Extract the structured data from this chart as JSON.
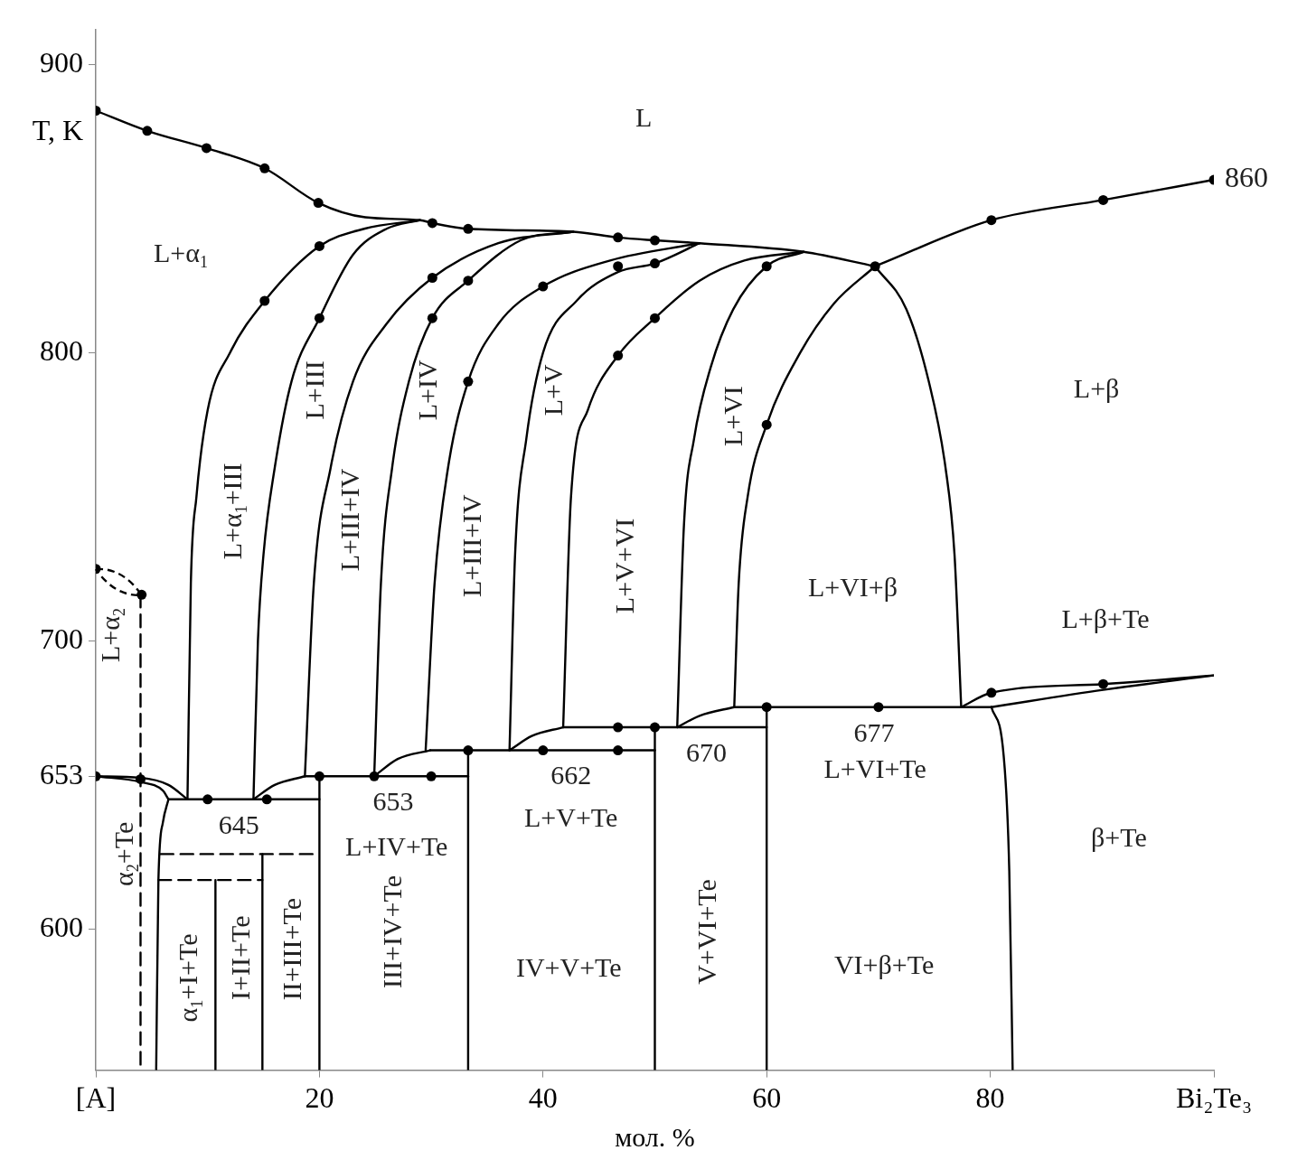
{
  "chart_data": {
    "type": "line",
    "xlabel": "мол. %",
    "ylabel": "T, K",
    "xlim": [
      0,
      100
    ],
    "ylim": [
      551,
      912
    ],
    "xticks": [
      {
        "value": 0,
        "label": "[A]"
      },
      20,
      40,
      60,
      80,
      {
        "value": 100,
        "label": "Bi₂Te₃"
      }
    ],
    "yticks": [
      600,
      653,
      700,
      800,
      900
    ],
    "series": [
      {
        "type": "line",
        "color": "#000000",
        "x": [
          0,
          4.6,
          9.9,
          15.1,
          19.9,
          24.1,
          29,
          30.1,
          33.3,
          42.7,
          46.7,
          50,
          54,
          63.3,
          69.7
        ],
        "values": [
          884,
          877,
          871,
          864,
          852,
          847,
          846,
          845,
          843,
          842,
          840,
          839,
          838,
          835,
          830
        ]
      },
      {
        "type": "line",
        "color": "#000000",
        "x": [
          69.7,
          80.1,
          90.1,
          100
        ],
        "values": [
          830,
          846,
          853,
          860
        ]
      },
      {
        "type": "line",
        "color": "#000000",
        "x": [
          29,
          24,
          20,
          15.1,
          12,
          10,
          9,
          8.5,
          8.2
        ],
        "values": [
          846,
          843,
          837,
          818,
          800,
          780,
          750,
          720,
          645
        ]
      },
      {
        "type": "line",
        "color": "#000000",
        "x": [
          29,
          26,
          23,
          20,
          17.5,
          16,
          15,
          14.5,
          14.1
        ],
        "values": [
          846,
          843,
          834,
          812,
          790,
          760,
          730,
          700,
          645
        ]
      },
      {
        "type": "line",
        "color": "#000000",
        "x": [
          42.7,
          36,
          30.1,
          26,
          23,
          21,
          19.5,
          18.7
        ],
        "values": [
          842,
          838,
          826,
          810,
          790,
          760,
          720,
          653
        ]
      },
      {
        "type": "line",
        "color": "#000000",
        "x": [
          42.7,
          38,
          33.3,
          30.1,
          28,
          26.5,
          25.5,
          24.9
        ],
        "values": [
          842,
          839,
          825,
          812,
          790,
          760,
          720,
          653
        ]
      },
      {
        "type": "line",
        "color": "#000000",
        "x": [
          54,
          46,
          40,
          36,
          33.3,
          31.5,
          30.3,
          29.5
        ],
        "values": [
          838,
          832,
          823,
          810,
          790,
          760,
          720,
          662
        ]
      },
      {
        "type": "line",
        "color": "#000000",
        "x": [
          54,
          50,
          46.7,
          43,
          40,
          38.5,
          37.5,
          37
        ],
        "values": [
          838,
          831,
          828,
          818,
          800,
          770,
          730,
          662
        ]
      },
      {
        "type": "line",
        "color": "#000000",
        "x": [
          63.3,
          58,
          54,
          50,
          46.7,
          44,
          42.5,
          41.8
        ],
        "values": [
          835,
          832,
          825,
          812,
          799,
          780,
          750,
          670
        ]
      },
      {
        "type": "line",
        "color": "#000000",
        "x": [
          63.3,
          60,
          57,
          55,
          53.5,
          52.6,
          52
        ],
        "values": [
          835,
          830,
          815,
          795,
          770,
          740,
          670
        ]
      },
      {
        "type": "line",
        "color": "#000000",
        "x": [
          69.7,
          66,
          63,
          60,
          58.3,
          57.5,
          57.1
        ],
        "values": [
          830,
          817,
          800,
          775,
          750,
          720,
          677
        ]
      },
      {
        "type": "line",
        "color": "#000000",
        "x": [
          69.7,
          72.5,
          74.5,
          76,
          76.8,
          77.4
        ],
        "values": [
          830,
          815,
          790,
          760,
          730,
          677
        ]
      },
      {
        "type": "line",
        "color": "#000000",
        "x": [
          0,
          4,
          6.5,
          8.2
        ],
        "values": [
          653,
          652.5,
          650,
          645
        ]
      },
      {
        "type": "line",
        "color": "#000000",
        "x": [
          0,
          4,
          6,
          6.5
        ],
        "values": [
          653,
          651,
          648,
          645
        ]
      },
      {
        "type": "line",
        "color": "#000000",
        "x": [
          6.5,
          6,
          5.6,
          5.4
        ],
        "values": [
          645,
          637,
          617,
          551
        ]
      },
      {
        "type": "line",
        "color": "#000000",
        "x": [
          6.5,
          20
        ],
        "values": [
          645,
          645
        ]
      },
      {
        "type": "line",
        "color": "#000000",
        "x": [
          14.1,
          16,
          18.7
        ],
        "values": [
          645,
          650,
          653
        ]
      },
      {
        "type": "line",
        "color": "#000000",
        "x": [
          18.7,
          33.3
        ],
        "values": [
          653,
          653
        ]
      },
      {
        "type": "line",
        "color": "#000000",
        "x": [
          20,
          20
        ],
        "values": [
          653,
          551
        ]
      },
      {
        "type": "line",
        "color": "#000000",
        "x": [
          24.9,
          27,
          29.9
        ],
        "values": [
          653,
          659,
          662
        ]
      },
      {
        "type": "line",
        "color": "#000000",
        "x": [
          29.9,
          50
        ],
        "values": [
          662,
          662
        ]
      },
      {
        "type": "line",
        "color": "#000000",
        "x": [
          33.3,
          33.3
        ],
        "values": [
          662,
          551
        ]
      },
      {
        "type": "line",
        "color": "#000000",
        "x": [
          37,
          39,
          41.8
        ],
        "values": [
          662,
          667,
          670
        ]
      },
      {
        "type": "line",
        "color": "#000000",
        "x": [
          41.8,
          60
        ],
        "values": [
          670,
          670
        ]
      },
      {
        "type": "line",
        "color": "#000000",
        "x": [
          50,
          50
        ],
        "values": [
          670,
          551
        ]
      },
      {
        "type": "line",
        "color": "#000000",
        "x": [
          52,
          54,
          57.1
        ],
        "values": [
          670,
          674,
          677
        ]
      },
      {
        "type": "line",
        "color": "#000000",
        "x": [
          57.1,
          80.1
        ],
        "values": [
          677,
          677
        ]
      },
      {
        "type": "line",
        "color": "#000000",
        "x": [
          60,
          60
        ],
        "values": [
          677,
          551
        ]
      },
      {
        "type": "line",
        "color": "#000000",
        "x": [
          77.4,
          80.1,
          90.1,
          100
        ],
        "values": [
          677,
          682,
          685,
          688
        ]
      },
      {
        "type": "line",
        "color": "#000000",
        "x": [
          80.1,
          90.1,
          100
        ],
        "values": [
          677,
          683,
          688
        ]
      },
      {
        "type": "line",
        "color": "#000000",
        "x": [
          80.1,
          81.2,
          81.7,
          82
        ],
        "values": [
          677,
          660,
          620,
          551
        ]
      },
      {
        "type": "line",
        "color": "#000000",
        "x": [
          10.7,
          10.7
        ],
        "values": [
          617,
          551
        ]
      },
      {
        "type": "line",
        "color": "#000000",
        "x": [
          14.9,
          14.9
        ],
        "values": [
          626,
          551
        ]
      },
      {
        "type": "line",
        "color": "#000000",
        "line_style": "dashed",
        "x": [
          5.8,
          20
        ],
        "values": [
          626,
          626
        ]
      },
      {
        "type": "line",
        "color": "#000000",
        "line_style": "dashed",
        "x": [
          5.6,
          14.9
        ],
        "values": [
          617,
          617
        ]
      },
      {
        "type": "line",
        "color": "#000000",
        "line_style": "dashed",
        "x": [
          4,
          4
        ],
        "values": [
          716,
          551
        ]
      },
      {
        "type": "scatter",
        "color": "#000000",
        "marker": "circle",
        "x": [
          0,
          4.6,
          9.9,
          15.1,
          19.9,
          30.1,
          33.3,
          46.7,
          50,
          60,
          69.7,
          80.1,
          90.1,
          100,
          20,
          15.1,
          20,
          30.1,
          33.3,
          30.1,
          33.3,
          40,
          46.7,
          50,
          46.7,
          50,
          60,
          0,
          4,
          10,
          15.3,
          20,
          24.9,
          30,
          33.3,
          40,
          46.7,
          46.7,
          50,
          60,
          70,
          80.1,
          90.1,
          0,
          4.1
        ],
        "values": [
          884,
          877,
          871,
          864,
          852,
          845,
          843,
          840,
          839,
          830,
          830,
          846,
          853,
          860,
          837,
          818,
          812,
          826,
          825,
          812,
          790,
          823,
          830,
          831,
          799,
          812,
          775,
          653,
          652,
          645,
          645,
          653,
          653,
          653,
          662,
          662,
          662,
          670,
          670,
          677,
          677,
          682,
          685,
          725,
          716
        ]
      }
    ],
    "annotations": [
      "L+α$_{2}$",
      "α$_{2}$+Te",
      "L+α$_{1}$+III",
      "L+III",
      "L+III+IV",
      "L+IV",
      "L+III+IV",
      "L+V",
      "L+V+VI",
      "L+VI",
      "α$_{1}$+I+Te",
      "I+II+Te",
      "II+III+Te",
      "III+IV+Te",
      "V+VI+Te",
      "L",
      "L+α$_{1}$",
      "L+β",
      "L+VI+β",
      "L+β+Te",
      "L+IV+Te",
      "L+V+Te",
      "L+VI+Te",
      "β+Te",
      "IV+V+Te",
      "VI+β+Te",
      {
        "text": "645",
        "x": 12.8,
        "y": 645
      },
      {
        "text": "653",
        "x": 26.6,
        "y": 653
      },
      {
        "text": "662",
        "x": 42.5,
        "y": 662
      },
      {
        "text": "670",
        "x": 54.6,
        "y": 670
      },
      {
        "text": "677",
        "x": 69.6,
        "y": 677
      },
      {
        "text": "860",
        "x": 100,
        "y": 860
      }
    ]
  }
}
